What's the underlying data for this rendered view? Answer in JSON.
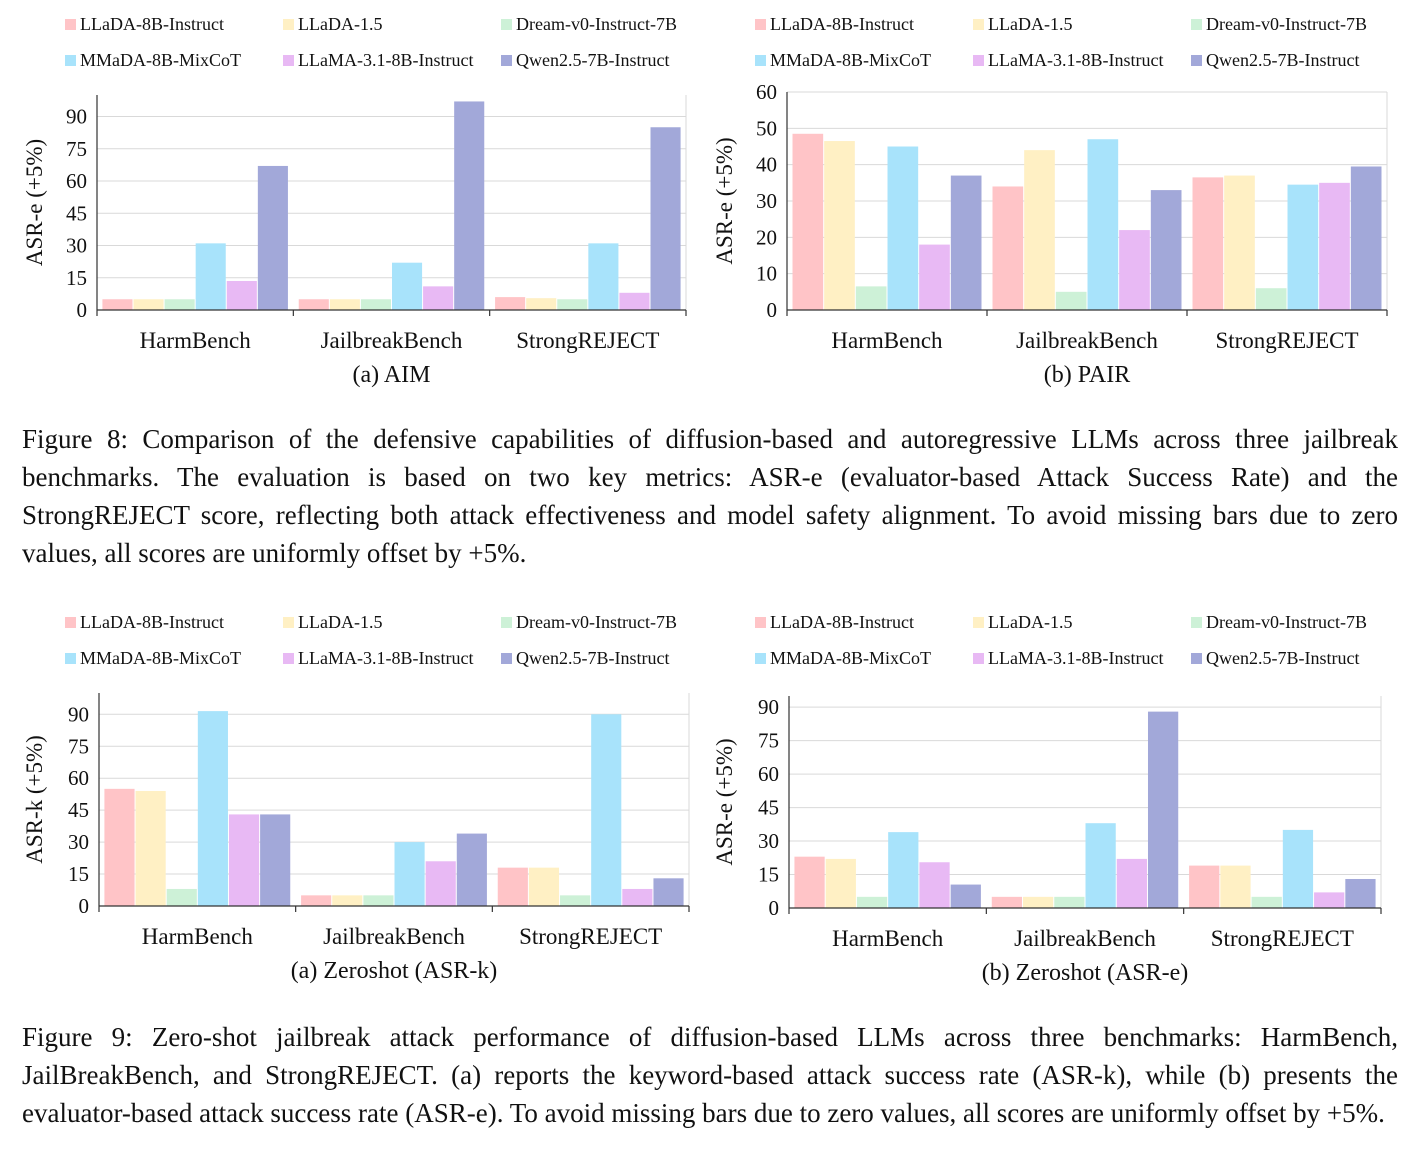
{
  "colors": {
    "LLaDA-8B-Instruct": "#ffc4c7",
    "LLaDA-1.5": "#fff0c4",
    "Dream-v0-Instruct-7B": "#cdf1d7",
    "MMaDA-8B-MixCoT": "#a8e3fb",
    "LLaMA-3.1-8B-Instruct": "#e8b9f4",
    "Qwen2.5-7B-Instruct": "#a2a8d9"
  },
  "figure8": {
    "caption": "Figure 8: Comparison of the defensive capabilities of diffusion-based and autoregressive LLMs across three jailbreak benchmarks. The evaluation is based on two key metrics: ASR-e (evaluator-based Attack Success Rate) and the StrongREJECT score, reflecting both attack effectiveness and model safety alignment. To avoid missing bars due to zero values, all scores are uniformly offset by +5%."
  },
  "figure9": {
    "caption": "Figure 9: Zero-shot jailbreak attack performance of diffusion-based LLMs across three benchmarks: HarmBench, JailBreakBench, and StrongREJECT. (a) reports the keyword-based attack success rate (ASR-k), while (b) presents the evaluator-based attack success rate (ASR-e). To avoid missing bars due to zero values, all scores are uniformly offset by +5%."
  },
  "chart_data": [
    {
      "id": "aim",
      "type": "bar",
      "subtitle": "(a) AIM",
      "ylabel": "ASR-e (+5%)",
      "xlabel": "",
      "categories": [
        "HarmBench",
        "JailbreakBench",
        "StrongREJECT"
      ],
      "ylim": [
        0,
        100
      ],
      "yticks": [
        0,
        15,
        30,
        45,
        60,
        75,
        90
      ],
      "grid": true,
      "legend": "top",
      "series": [
        {
          "name": "LLaDA-8B-Instruct",
          "values": [
            5,
            5,
            6
          ]
        },
        {
          "name": "LLaDA-1.5",
          "values": [
            5,
            5,
            5.5
          ]
        },
        {
          "name": "Dream-v0-Instruct-7B",
          "values": [
            5,
            5,
            5
          ]
        },
        {
          "name": "MMaDA-8B-MixCoT",
          "values": [
            31,
            22,
            31
          ]
        },
        {
          "name": "LLaMA-3.1-8B-Instruct",
          "values": [
            13.5,
            11,
            8
          ]
        },
        {
          "name": "Qwen2.5-7B-Instruct",
          "values": [
            67,
            97,
            85
          ]
        }
      ]
    },
    {
      "id": "pair",
      "type": "bar",
      "subtitle": "(b) PAIR",
      "ylabel": "ASR-e (+5%)",
      "xlabel": "",
      "categories": [
        "HarmBench",
        "JailbreakBench",
        "StrongREJECT"
      ],
      "ylim": [
        0,
        60
      ],
      "yticks": [
        0,
        10,
        20,
        30,
        40,
        50,
        60
      ],
      "grid": true,
      "legend": "top",
      "series": [
        {
          "name": "LLaDA-8B-Instruct",
          "values": [
            48.5,
            34,
            36.5
          ]
        },
        {
          "name": "LLaDA-1.5",
          "values": [
            46.5,
            44,
            37
          ]
        },
        {
          "name": "Dream-v0-Instruct-7B",
          "values": [
            6.5,
            5,
            6
          ]
        },
        {
          "name": "MMaDA-8B-MixCoT",
          "values": [
            45,
            47,
            34.5
          ]
        },
        {
          "name": "LLaMA-3.1-8B-Instruct",
          "values": [
            18,
            22,
            35
          ]
        },
        {
          "name": "Qwen2.5-7B-Instruct",
          "values": [
            37,
            33,
            39.5
          ]
        }
      ]
    },
    {
      "id": "zs-k",
      "type": "bar",
      "subtitle": "(a) Zeroshot (ASR-k)",
      "ylabel": "ASR-k (+5%)",
      "xlabel": "",
      "categories": [
        "HarmBench",
        "JailbreakBench",
        "StrongREJECT"
      ],
      "ylim": [
        0,
        100
      ],
      "yticks": [
        0,
        15,
        30,
        45,
        60,
        75,
        90
      ],
      "grid": true,
      "legend": "top",
      "series": [
        {
          "name": "LLaDA-8B-Instruct",
          "values": [
            55,
            5,
            18
          ]
        },
        {
          "name": "LLaDA-1.5",
          "values": [
            54,
            5,
            18
          ]
        },
        {
          "name": "Dream-v0-Instruct-7B",
          "values": [
            8,
            5,
            5
          ]
        },
        {
          "name": "MMaDA-8B-MixCoT",
          "values": [
            91.5,
            30,
            90
          ]
        },
        {
          "name": "LLaMA-3.1-8B-Instruct",
          "values": [
            43,
            21,
            8
          ]
        },
        {
          "name": "Qwen2.5-7B-Instruct",
          "values": [
            43,
            34,
            13
          ]
        }
      ]
    },
    {
      "id": "zs-e",
      "type": "bar",
      "subtitle": "(b) Zeroshot (ASR-e)",
      "ylabel": "ASR-e (+5%)",
      "xlabel": "",
      "categories": [
        "HarmBench",
        "JailbreakBench",
        "StrongREJECT"
      ],
      "ylim": [
        0,
        95
      ],
      "yticks": [
        0,
        15,
        30,
        45,
        60,
        75,
        90
      ],
      "grid": true,
      "legend": "top",
      "series": [
        {
          "name": "LLaDA-8B-Instruct",
          "values": [
            23,
            5,
            19
          ]
        },
        {
          "name": "LLaDA-1.5",
          "values": [
            22,
            5,
            19
          ]
        },
        {
          "name": "Dream-v0-Instruct-7B",
          "values": [
            5,
            5,
            5
          ]
        },
        {
          "name": "MMaDA-8B-MixCoT",
          "values": [
            34,
            38,
            35
          ]
        },
        {
          "name": "LLaMA-3.1-8B-Instruct",
          "values": [
            20.5,
            22,
            7
          ]
        },
        {
          "name": "Qwen2.5-7B-Instruct",
          "values": [
            10.5,
            88,
            13
          ]
        }
      ]
    }
  ]
}
